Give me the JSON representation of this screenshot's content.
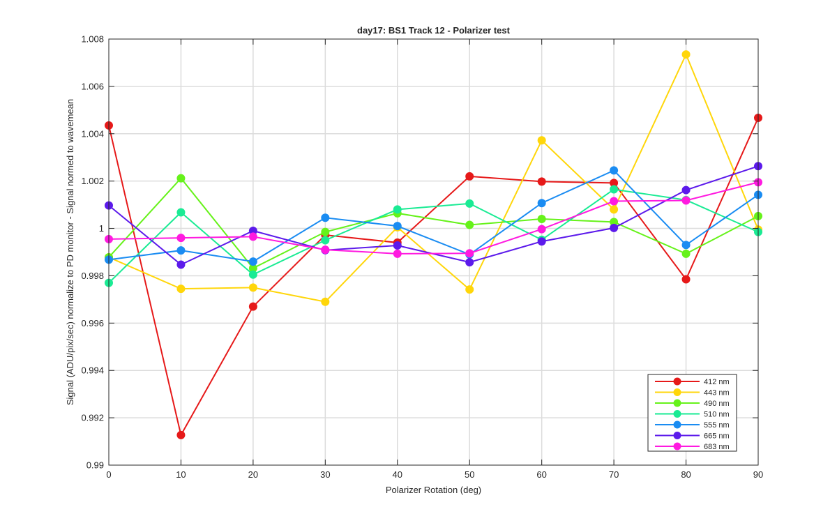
{
  "chart_data": {
    "type": "line",
    "title": "day17: BS1  Track 12 - Polarizer test",
    "xlabel": "Polarizer Rotation (deg)",
    "ylabel": "Signal (ADU/pix/sec) normalize to PD monitor - Signal normed to wavemean",
    "xlim": [
      0,
      90
    ],
    "ylim": [
      0.99,
      1.008
    ],
    "grid": true,
    "x_ticks": [
      0,
      10,
      20,
      30,
      40,
      50,
      60,
      70,
      80,
      90
    ],
    "x_tick_labels": [
      "0",
      "10",
      "20",
      "30",
      "40",
      "50",
      "60",
      "70",
      "80",
      "90"
    ],
    "y_ticks": [
      0.99,
      0.992,
      0.994,
      0.996,
      0.998,
      1.0,
      1.002,
      1.004,
      1.006,
      1.008
    ],
    "y_tick_labels": [
      "0.99",
      "0.992",
      "0.994",
      "0.996",
      "0.998",
      "1",
      "1.002",
      "1.004",
      "1.006",
      "1.008"
    ],
    "legend_position": "bottom-right",
    "x": [
      0,
      10,
      20,
      30,
      40,
      50,
      60,
      70,
      80,
      90
    ],
    "series": [
      {
        "name": "412 nm",
        "color": "#e61919",
        "values": [
          1.00435,
          0.99127,
          0.9967,
          0.99972,
          0.9994,
          1.0022,
          1.00198,
          1.00192,
          0.99785,
          1.00467
        ]
      },
      {
        "name": "443 nm",
        "color": "#ffd60a",
        "values": [
          0.99878,
          0.99745,
          0.9975,
          0.9969,
          1.00005,
          0.99742,
          1.00372,
          1.0008,
          1.00735,
          0.99995
        ]
      },
      {
        "name": "490 nm",
        "color": "#66f21a",
        "values": [
          0.99878,
          1.00212,
          0.99832,
          0.99985,
          1.00064,
          1.00015,
          1.0004,
          1.00027,
          0.99893,
          1.00052
        ]
      },
      {
        "name": "510 nm",
        "color": "#1aeb94",
        "values": [
          0.9977,
          1.00068,
          0.99805,
          0.9995,
          1.0008,
          1.00105,
          0.99952,
          1.00165,
          1.0012,
          0.99985
        ]
      },
      {
        "name": "555 nm",
        "color": "#1a8cf2",
        "values": [
          0.99868,
          0.99907,
          0.9986,
          1.00045,
          1.0001,
          0.9989,
          1.00107,
          1.00245,
          0.9993,
          1.00142
        ]
      },
      {
        "name": "665 nm",
        "color": "#5c1aeb",
        "values": [
          1.00097,
          0.99847,
          0.9999,
          0.99908,
          0.99928,
          0.99857,
          0.99945,
          1.00002,
          1.00162,
          1.00263
        ]
      },
      {
        "name": "683 nm",
        "color": "#ff1ae0",
        "values": [
          0.99955,
          0.9996,
          0.99965,
          0.9991,
          0.99893,
          0.99895,
          0.99997,
          1.00115,
          1.00118,
          1.00195
        ]
      }
    ]
  }
}
